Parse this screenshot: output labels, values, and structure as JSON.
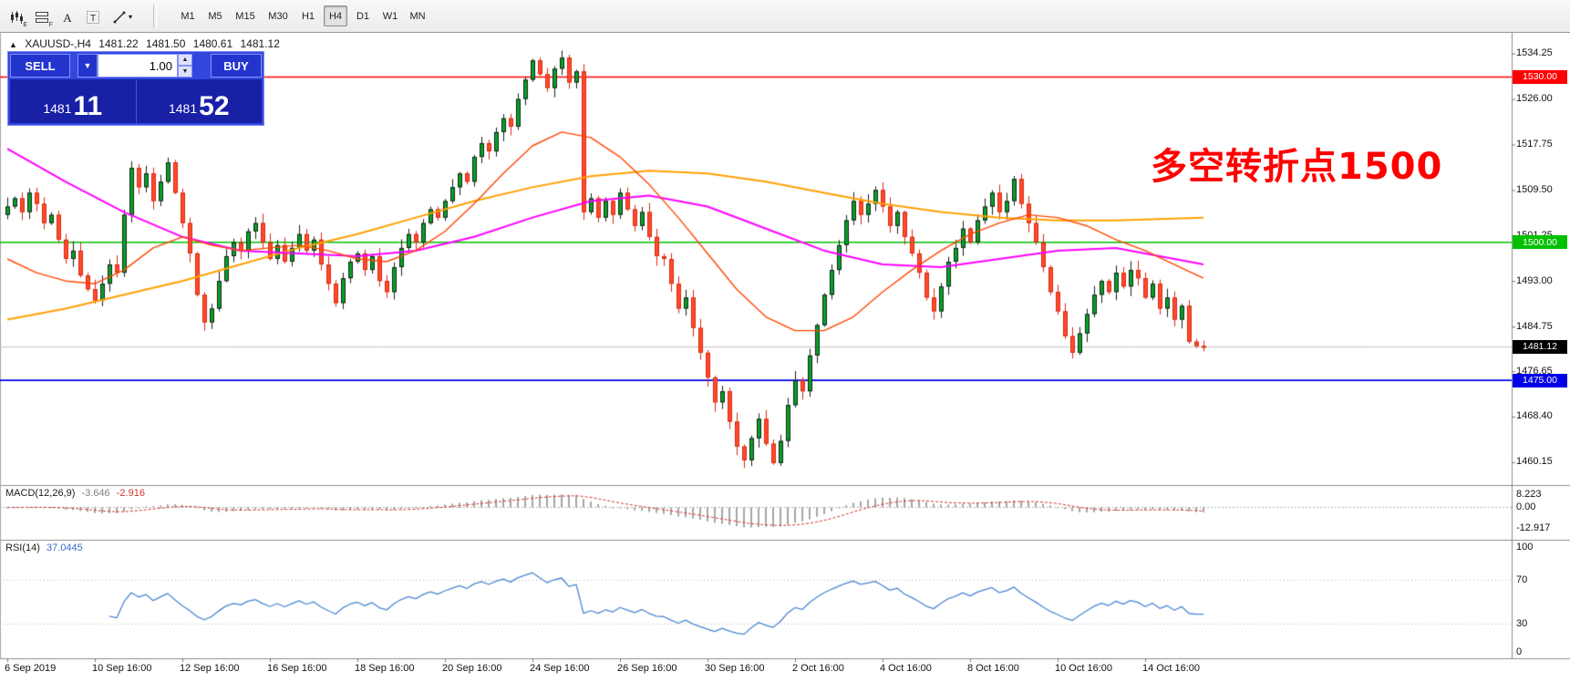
{
  "toolbar": {
    "icons": [
      {
        "name": "bar-chart-icon",
        "sub": "E"
      },
      {
        "name": "tile-windows-icon",
        "sub": "F"
      },
      {
        "name": "text-tool-icon"
      },
      {
        "name": "label-tool-icon"
      },
      {
        "name": "line-studies-icon",
        "dropdown": true,
        "dropdown_glyph": "▾"
      }
    ],
    "timeframes": [
      "M1",
      "M5",
      "M15",
      "M30",
      "H1",
      "H4",
      "D1",
      "W1",
      "MN"
    ],
    "active_timeframe": "H4"
  },
  "header": {
    "direction_icon": "▲",
    "symbol": "XAUUSD-,H4",
    "open": "1481.22",
    "high": "1481.50",
    "low": "1480.61",
    "close": "1481.12"
  },
  "trade_panel": {
    "sell_label": "SELL",
    "buy_label": "BUY",
    "volume": "1.00",
    "dropdown_icon": "▼",
    "spin_up_icon": "▲",
    "spin_down_icon": "▼",
    "sell_price_main": "1481",
    "sell_price_pips": "11",
    "buy_price_main": "1481",
    "buy_price_pips": "52"
  },
  "annotation": {
    "text": "多空转折点1500",
    "color": "#ff0000"
  },
  "price_axis": {
    "ticks": [
      {
        "value": 1534.25,
        "label": "1534.25"
      },
      {
        "value": 1526.0,
        "label": "1526.00"
      },
      {
        "value": 1517.75,
        "label": "1517.75"
      },
      {
        "value": 1509.5,
        "label": "1509.50"
      },
      {
        "value": 1501.25,
        "label": "1501.25"
      },
      {
        "value": 1493.0,
        "label": "1493.00"
      },
      {
        "value": 1484.75,
        "label": "1484.75"
      },
      {
        "value": 1476.65,
        "label": "1476.65"
      },
      {
        "value": 1468.4,
        "label": "1468.40"
      },
      {
        "value": 1460.15,
        "label": "1460.15"
      }
    ]
  },
  "time_axis": {
    "bars_between_labels": 12,
    "labels": [
      "6 Sep 2019",
      "10 Sep 16:00",
      "12 Sep 16:00",
      "16 Sep 16:00",
      "18 Sep 16:00",
      "20 Sep 16:00",
      "24 Sep 16:00",
      "26 Sep 16:00",
      "30 Sep 16:00",
      "2 Oct 16:00",
      "4 Oct 16:00",
      "8 Oct 16:00",
      "10 Oct 16:00",
      "14 Oct 16:00"
    ]
  },
  "indicators": {
    "macd": {
      "label": "MACD(12,26,9)",
      "value_main": "-3.646",
      "value_signal": "-2.916",
      "fast": 12,
      "slow": 26,
      "signal": 9,
      "histogram_color": "#a6a6a6",
      "signal_color": "#d23434",
      "value_main_color": "#808080",
      "ticks": [
        {
          "value": 8.223,
          "label": "8.223"
        },
        {
          "value": 0,
          "label": "0.00"
        },
        {
          "value": -12.917,
          "label": "-12.917"
        }
      ]
    },
    "rsi": {
      "label": "RSI(14)",
      "value": "37.0445",
      "period": 14,
      "color": "#4a86d2",
      "value_color": "#3a6fc4",
      "levels": [
        70,
        30
      ],
      "ticks": [
        {
          "value": 100,
          "label": "100"
        },
        {
          "value": 70,
          "label": "70"
        },
        {
          "value": 30,
          "label": "30"
        },
        {
          "value": 0,
          "label": "0"
        }
      ]
    }
  },
  "chart_data": {
    "type": "candlestick",
    "symbol": "XAUUSD",
    "timeframe": "H4",
    "price_range": [
      1456,
      1538
    ],
    "wick_amp": 1.5,
    "closes": [
      1506.5,
      1508.0,
      1505.5,
      1509.0,
      1507.0,
      1503.5,
      1505.0,
      1500.5,
      1497.0,
      1498.5,
      1494.0,
      1491.5,
      1489.5,
      1492.5,
      1496.0,
      1494.5,
      1505.0,
      1513.5,
      1510.0,
      1512.5,
      1507.5,
      1511.0,
      1514.5,
      1509.0,
      1503.5,
      1498.0,
      1490.5,
      1485.5,
      1488.0,
      1493.0,
      1497.5,
      1500.0,
      1498.5,
      1502.0,
      1503.5,
      1500.0,
      1497.0,
      1499.5,
      1496.5,
      1499.0,
      1501.5,
      1498.5,
      1500.5,
      1496.0,
      1492.5,
      1489.0,
      1493.5,
      1496.5,
      1498.0,
      1495.0,
      1497.5,
      1493.0,
      1491.0,
      1495.5,
      1499.0,
      1501.5,
      1500.0,
      1503.5,
      1506.0,
      1504.5,
      1507.5,
      1510.0,
      1512.5,
      1511.0,
      1515.5,
      1518.0,
      1516.5,
      1520.0,
      1522.5,
      1521.0,
      1526.0,
      1529.5,
      1533.0,
      1530.5,
      1528.0,
      1531.5,
      1533.5,
      1529.0,
      1531.0,
      1505.5,
      1508.0,
      1504.5,
      1507.5,
      1505.0,
      1509.0,
      1506.0,
      1503.0,
      1505.5,
      1501.0,
      1497.5,
      1497.0,
      1492.5,
      1488.0,
      1490.0,
      1484.5,
      1480.0,
      1475.5,
      1471.0,
      1473.0,
      1467.5,
      1463.0,
      1460.5,
      1464.5,
      1468.0,
      1463.5,
      1460.0,
      1464.0,
      1470.5,
      1475.0,
      1473.0,
      1479.5,
      1485.0,
      1490.5,
      1495.0,
      1499.5,
      1504.0,
      1507.5,
      1505.0,
      1507.0,
      1509.5,
      1506.5,
      1503.0,
      1505.5,
      1501.0,
      1498.0,
      1494.5,
      1490.0,
      1487.5,
      1492.0,
      1496.5,
      1499.0,
      1502.5,
      1500.0,
      1504.0,
      1506.5,
      1509.0,
      1505.5,
      1507.5,
      1511.5,
      1507.0,
      1503.5,
      1500.0,
      1495.5,
      1491.0,
      1487.5,
      1483.0,
      1480.0,
      1483.5,
      1487.0,
      1490.5,
      1493.0,
      1491.0,
      1494.5,
      1492.0,
      1495.0,
      1493.5,
      1490.0,
      1492.5,
      1488.0,
      1490.0,
      1486.0,
      1488.5,
      1482.0,
      1481.22,
      1481.12
    ],
    "candle_colors": {
      "up_fill": "#00a524",
      "up_stroke": "#1c1c1c",
      "down_fill": "#ff4a2e",
      "down_stroke": "#d62b12"
    },
    "moving_averages": [
      {
        "name": "ma-slow",
        "color": "#ffa000",
        "width": 2,
        "points": [
          [
            0,
            1486
          ],
          [
            8,
            1488
          ],
          [
            16,
            1490.5
          ],
          [
            24,
            1493
          ],
          [
            32,
            1496
          ],
          [
            40,
            1499
          ],
          [
            48,
            1501.5
          ],
          [
            56,
            1504.5
          ],
          [
            64,
            1507.5
          ],
          [
            72,
            1510
          ],
          [
            80,
            1512
          ],
          [
            88,
            1513
          ],
          [
            96,
            1512.5
          ],
          [
            104,
            1511
          ],
          [
            112,
            1509
          ],
          [
            120,
            1507
          ],
          [
            128,
            1505.5
          ],
          [
            136,
            1504.5
          ],
          [
            144,
            1504
          ],
          [
            152,
            1504
          ],
          [
            164,
            1504.5
          ]
        ]
      },
      {
        "name": "ma-mid",
        "color": "#ff00ff",
        "width": 2,
        "points": [
          [
            0,
            1517
          ],
          [
            8,
            1511
          ],
          [
            16,
            1505.5
          ],
          [
            24,
            1501
          ],
          [
            32,
            1498.5
          ],
          [
            40,
            1498
          ],
          [
            48,
            1497.5
          ],
          [
            56,
            1498.5
          ],
          [
            64,
            1501
          ],
          [
            72,
            1504.5
          ],
          [
            80,
            1507.5
          ],
          [
            88,
            1508.5
          ],
          [
            96,
            1506.5
          ],
          [
            104,
            1502.5
          ],
          [
            112,
            1498.5
          ],
          [
            120,
            1496
          ],
          [
            128,
            1495.5
          ],
          [
            136,
            1497
          ],
          [
            144,
            1498.5
          ],
          [
            152,
            1499
          ],
          [
            158,
            1497.5
          ],
          [
            164,
            1496
          ]
        ]
      },
      {
        "name": "ma-fast",
        "color": "#ff4500",
        "width": 1.4,
        "points": [
          [
            0,
            1497
          ],
          [
            4,
            1494.5
          ],
          [
            8,
            1493
          ],
          [
            12,
            1492.5
          ],
          [
            16,
            1495
          ],
          [
            20,
            1499
          ],
          [
            24,
            1501
          ],
          [
            28,
            1499.5
          ],
          [
            32,
            1498.5
          ],
          [
            36,
            1499
          ],
          [
            40,
            1499.5
          ],
          [
            44,
            1498.5
          ],
          [
            48,
            1497
          ],
          [
            52,
            1496.5
          ],
          [
            56,
            1498.5
          ],
          [
            60,
            1502
          ],
          [
            64,
            1507
          ],
          [
            68,
            1512.5
          ],
          [
            72,
            1517.5
          ],
          [
            76,
            1520
          ],
          [
            80,
            1519
          ],
          [
            84,
            1515.5
          ],
          [
            88,
            1510.5
          ],
          [
            92,
            1504.5
          ],
          [
            96,
            1498
          ],
          [
            100,
            1491.5
          ],
          [
            104,
            1486.5
          ],
          [
            108,
            1484
          ],
          [
            112,
            1484
          ],
          [
            116,
            1486.5
          ],
          [
            120,
            1491
          ],
          [
            124,
            1495
          ],
          [
            128,
            1498.5
          ],
          [
            132,
            1501.5
          ],
          [
            136,
            1503.5
          ],
          [
            140,
            1505
          ],
          [
            144,
            1504.5
          ],
          [
            148,
            1503
          ],
          [
            152,
            1500.5
          ],
          [
            156,
            1498.5
          ],
          [
            160,
            1496
          ],
          [
            164,
            1493.5
          ]
        ]
      }
    ],
    "hlines": [
      {
        "value": 1530.0,
        "label": "1530.00",
        "color": "#ff0000"
      },
      {
        "value": 1500.0,
        "label": "1500.00",
        "color": "#00c000"
      },
      {
        "value": 1475.0,
        "label": "1475.00",
        "color": "#0000e6"
      }
    ],
    "current_price": {
      "value": 1481.12,
      "label": "1481.12",
      "box_color": "#000000",
      "line_color": "#c4c4c4"
    }
  }
}
